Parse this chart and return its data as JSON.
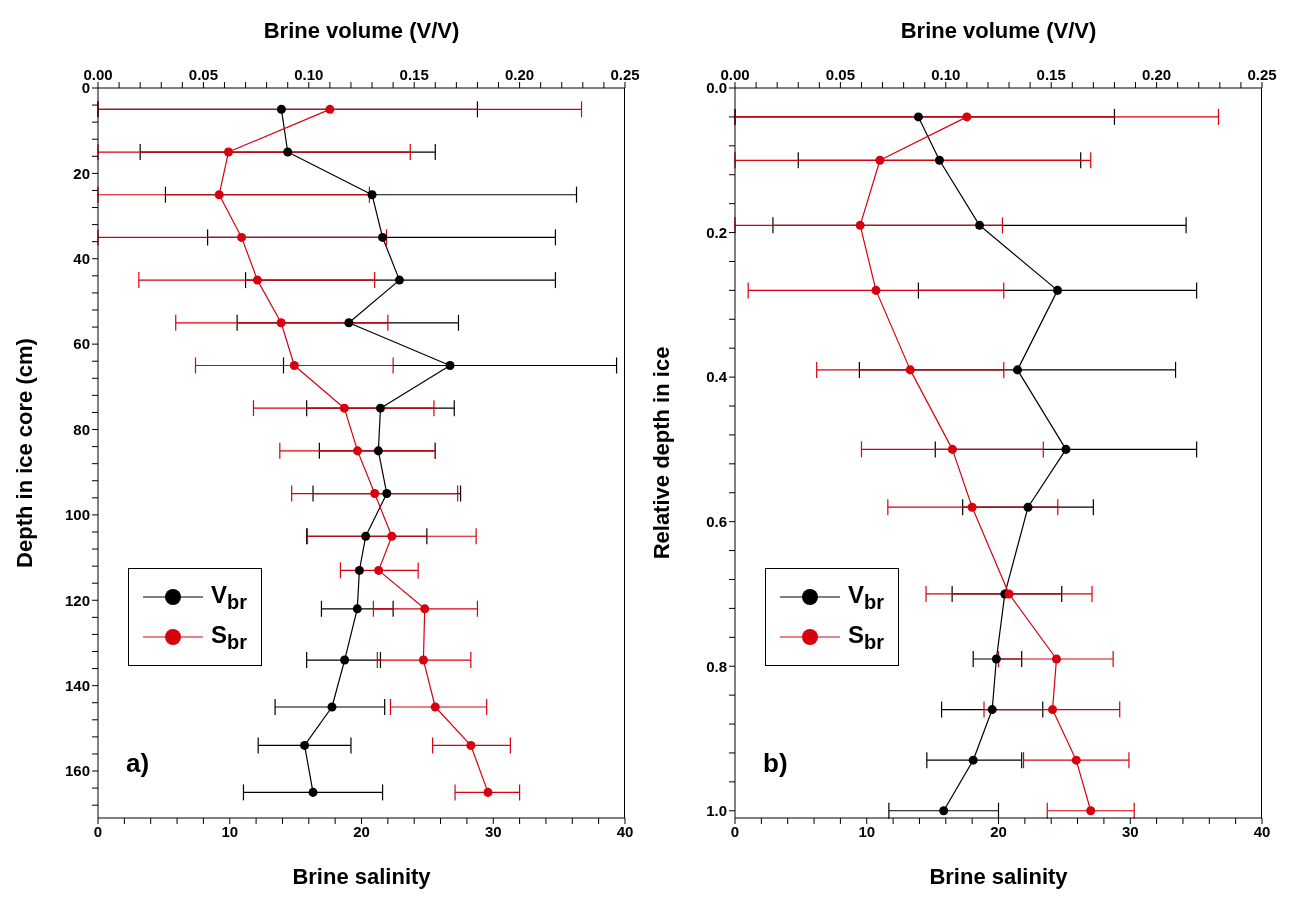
{
  "chart_data": [
    {
      "type": "line",
      "x2label": "Brine volume (V/V)",
      "xlabel": "Brine salinity",
      "ylabel": "Depth in ice core (cm)",
      "annotations": [
        "a)"
      ],
      "legend": "bottom left",
      "marker": "circle",
      "line_style": "solid",
      "xlim": [
        0,
        40
      ],
      "xticks": [
        0,
        {
          "value": 2,
          "label": null
        },
        {
          "value": 4,
          "label": null
        },
        {
          "value": 6,
          "label": null
        },
        {
          "value": 8,
          "label": null
        },
        10,
        {
          "value": 12,
          "label": null
        },
        {
          "value": 14,
          "label": null
        },
        {
          "value": 16,
          "label": null
        },
        {
          "value": 18,
          "label": null
        },
        20,
        {
          "value": 22,
          "label": null
        },
        {
          "value": 24,
          "label": null
        },
        {
          "value": 26,
          "label": null
        },
        {
          "value": 28,
          "label": null
        },
        30,
        {
          "value": 32,
          "label": null
        },
        {
          "value": 34,
          "label": null
        },
        {
          "value": 36,
          "label": null
        },
        {
          "value": 38,
          "label": null
        },
        40
      ],
      "x2lim": [
        0,
        0.25
      ],
      "x2ticks": [
        {
          "value": 0,
          "label": "0.00"
        },
        {
          "value": 0.01,
          "label": null
        },
        {
          "value": 0.02,
          "label": null
        },
        {
          "value": 0.03,
          "label": null
        },
        {
          "value": 0.04,
          "label": null
        },
        {
          "value": 0.05,
          "label": "0.05"
        },
        {
          "value": 0.06,
          "label": null
        },
        {
          "value": 0.07,
          "label": null
        },
        {
          "value": 0.08,
          "label": null
        },
        {
          "value": 0.09,
          "label": null
        },
        {
          "value": 0.1,
          "label": "0.10"
        },
        {
          "value": 0.11,
          "label": null
        },
        {
          "value": 0.12,
          "label": null
        },
        {
          "value": 0.13,
          "label": null
        },
        {
          "value": 0.14,
          "label": null
        },
        {
          "value": 0.15,
          "label": "0.15"
        },
        {
          "value": 0.16,
          "label": null
        },
        {
          "value": 0.17,
          "label": null
        },
        {
          "value": 0.18,
          "label": null
        },
        {
          "value": 0.19,
          "label": null
        },
        {
          "value": 0.2,
          "label": "0.20"
        },
        {
          "value": 0.21,
          "label": null
        },
        {
          "value": 0.22,
          "label": null
        },
        {
          "value": 0.23,
          "label": null
        },
        {
          "value": 0.24,
          "label": null
        },
        {
          "value": 0.25,
          "label": "0.25"
        }
      ],
      "ylim": [
        171,
        0
      ],
      "yticks": [
        0,
        {
          "value": 4,
          "label": null
        },
        {
          "value": 8,
          "label": null
        },
        {
          "value": 12,
          "label": null
        },
        {
          "value": 16,
          "label": null
        },
        20,
        {
          "value": 24,
          "label": null
        },
        {
          "value": 28,
          "label": null
        },
        {
          "value": 32,
          "label": null
        },
        {
          "value": 36,
          "label": null
        },
        40,
        {
          "value": 44,
          "label": null
        },
        {
          "value": 48,
          "label": null
        },
        {
          "value": 52,
          "label": null
        },
        {
          "value": 56,
          "label": null
        },
        60,
        {
          "value": 64,
          "label": null
        },
        {
          "value": 68,
          "label": null
        },
        {
          "value": 72,
          "label": null
        },
        {
          "value": 76,
          "label": null
        },
        80,
        {
          "value": 84,
          "label": null
        },
        {
          "value": 88,
          "label": null
        },
        {
          "value": 92,
          "label": null
        },
        {
          "value": 96,
          "label": null
        },
        100,
        {
          "value": 104,
          "label": null
        },
        {
          "value": 108,
          "label": null
        },
        {
          "value": 112,
          "label": null
        },
        {
          "value": 116,
          "label": null
        },
        120,
        {
          "value": 124,
          "label": null
        },
        {
          "value": 128,
          "label": null
        },
        {
          "value": 132,
          "label": null
        },
        {
          "value": 136,
          "label": null
        },
        140,
        {
          "value": 144,
          "label": null
        },
        {
          "value": 148,
          "label": null
        },
        {
          "value": 152,
          "label": null
        },
        {
          "value": 156,
          "label": null
        },
        160,
        {
          "value": 164,
          "label": null
        },
        {
          "value": 168,
          "label": null
        }
      ],
      "series": [
        {
          "name": "V$_{br}$",
          "color": "#000000",
          "axis": "x2",
          "x": [
            0.087,
            0.09,
            0.13,
            0.135,
            0.143,
            0.119,
            0.167,
            0.134,
            0.133,
            0.137,
            0.127,
            0.124,
            0.123,
            0.117,
            0.111,
            0.098,
            0.102
          ],
          "values": [
            5,
            15,
            25,
            35,
            45,
            55,
            65,
            75,
            85,
            95,
            105,
            113,
            122,
            134,
            145,
            154,
            165
          ],
          "xerrors": [
            [
              0,
              0.18
            ],
            [
              0.02,
              0.16
            ],
            [
              0.032,
              0.227
            ],
            [
              0.052,
              0.217
            ],
            [
              0.07,
              0.217
            ],
            [
              0.066,
              0.171
            ],
            [
              0.088,
              0.246
            ],
            [
              0.099,
              0.169
            ],
            [
              0.105,
              0.16
            ],
            [
              0.102,
              0.172
            ],
            [
              0.099,
              0.156
            ],
            null,
            [
              0.106,
              0.14
            ],
            [
              0.099,
              0.134
            ],
            [
              0.084,
              0.136
            ],
            [
              0.076,
              0.12
            ],
            [
              0.069,
              0.135
            ]
          ]
        },
        {
          "name": "S$_{br}$",
          "color": "#d7000f",
          "x": [
            17.6,
            9.9,
            9.2,
            10.9,
            12.1,
            13.9,
            14.9,
            18.7,
            19.7,
            21.0,
            22.3,
            21.3,
            24.8,
            24.7,
            25.6,
            28.3,
            29.6
          ],
          "values": [
            5,
            15,
            25,
            35,
            45,
            55,
            65,
            75,
            85,
            95,
            105,
            113,
            122,
            134,
            145,
            154,
            165
          ],
          "xerrors": [
            [
              0,
              36.7
            ],
            [
              0,
              23.7
            ],
            [
              0,
              20.6
            ],
            [
              0,
              21.9
            ],
            [
              3.1,
              21.0
            ],
            [
              5.9,
              22.0
            ],
            [
              7.4,
              22.4
            ],
            [
              11.8,
              25.5
            ],
            [
              13.8,
              25.6
            ],
            [
              14.7,
              27.3
            ],
            [
              15.9,
              28.7
            ],
            [
              18.4,
              24.3
            ],
            [
              20.9,
              28.8
            ],
            [
              21.2,
              28.3
            ],
            [
              22.2,
              29.5
            ],
            [
              25.4,
              31.3
            ],
            [
              27.1,
              32.0
            ]
          ]
        }
      ]
    },
    {
      "type": "line",
      "x2label": "Brine volume (V/V)",
      "xlabel": "Brine salinity",
      "ylabel": "Relative depth in ice",
      "annotations": [
        "b)"
      ],
      "legend": "bottom left",
      "marker": "circle",
      "line_style": "solid",
      "xlim": [
        0,
        40
      ],
      "xticks": [
        0,
        {
          "value": 2,
          "label": null
        },
        {
          "value": 4,
          "label": null
        },
        {
          "value": 6,
          "label": null
        },
        {
          "value": 8,
          "label": null
        },
        10,
        {
          "value": 12,
          "label": null
        },
        {
          "value": 14,
          "label": null
        },
        {
          "value": 16,
          "label": null
        },
        {
          "value": 18,
          "label": null
        },
        20,
        {
          "value": 22,
          "label": null
        },
        {
          "value": 24,
          "label": null
        },
        {
          "value": 26,
          "label": null
        },
        {
          "value": 28,
          "label": null
        },
        30,
        {
          "value": 32,
          "label": null
        },
        {
          "value": 34,
          "label": null
        },
        {
          "value": 36,
          "label": null
        },
        {
          "value": 38,
          "label": null
        },
        40
      ],
      "x2lim": [
        0,
        0.25
      ],
      "x2ticks": [
        {
          "value": 0,
          "label": "0.00"
        },
        {
          "value": 0.01,
          "label": null
        },
        {
          "value": 0.02,
          "label": null
        },
        {
          "value": 0.03,
          "label": null
        },
        {
          "value": 0.04,
          "label": null
        },
        {
          "value": 0.05,
          "label": "0.05"
        },
        {
          "value": 0.06,
          "label": null
        },
        {
          "value": 0.07,
          "label": null
        },
        {
          "value": 0.08,
          "label": null
        },
        {
          "value": 0.09,
          "label": null
        },
        {
          "value": 0.1,
          "label": "0.10"
        },
        {
          "value": 0.11,
          "label": null
        },
        {
          "value": 0.12,
          "label": null
        },
        {
          "value": 0.13,
          "label": null
        },
        {
          "value": 0.14,
          "label": null
        },
        {
          "value": 0.15,
          "label": "0.15"
        },
        {
          "value": 0.16,
          "label": null
        },
        {
          "value": 0.17,
          "label": null
        },
        {
          "value": 0.18,
          "label": null
        },
        {
          "value": 0.19,
          "label": null
        },
        {
          "value": 0.2,
          "label": "0.20"
        },
        {
          "value": 0.21,
          "label": null
        },
        {
          "value": 0.22,
          "label": null
        },
        {
          "value": 0.23,
          "label": null
        },
        {
          "value": 0.24,
          "label": null
        },
        {
          "value": 0.25,
          "label": "0.25"
        }
      ],
      "ylim": [
        1.01,
        0
      ],
      "yticks": [
        {
          "value": 0,
          "label": "0.0"
        },
        {
          "value": 0.04,
          "label": null
        },
        {
          "value": 0.08,
          "label": null
        },
        {
          "value": 0.12,
          "label": null
        },
        {
          "value": 0.16,
          "label": null
        },
        {
          "value": 0.2,
          "label": "0.2"
        },
        {
          "value": 0.24,
          "label": null
        },
        {
          "value": 0.28,
          "label": null
        },
        {
          "value": 0.32,
          "label": null
        },
        {
          "value": 0.36,
          "label": null
        },
        {
          "value": 0.4,
          "label": "0.4"
        },
        {
          "value": 0.44,
          "label": null
        },
        {
          "value": 0.48,
          "label": null
        },
        {
          "value": 0.52,
          "label": null
        },
        {
          "value": 0.56,
          "label": null
        },
        {
          "value": 0.6,
          "label": "0.6"
        },
        {
          "value": 0.64,
          "label": null
        },
        {
          "value": 0.68,
          "label": null
        },
        {
          "value": 0.72,
          "label": null
        },
        {
          "value": 0.76,
          "label": null
        },
        {
          "value": 0.8,
          "label": "0.8"
        },
        {
          "value": 0.84,
          "label": null
        },
        {
          "value": 0.88,
          "label": null
        },
        {
          "value": 0.92,
          "label": null
        },
        {
          "value": 0.96,
          "label": null
        },
        {
          "value": 1.0,
          "label": "1.0"
        }
      ],
      "series": [
        {
          "name": "V$_{br}$",
          "color": "#000000",
          "axis": "x2",
          "x": [
            0.087,
            0.097,
            0.116,
            0.153,
            0.134,
            0.157,
            0.139,
            0.128,
            0.124,
            0.122,
            0.113,
            0.099
          ],
          "values": [
            0.04,
            0.1,
            0.19,
            0.28,
            0.39,
            0.5,
            0.58,
            0.7,
            0.79,
            0.86,
            0.93,
            1.0
          ],
          "xerrors": [
            [
              0,
              0.18
            ],
            [
              0.03,
              0.164
            ],
            [
              0.018,
              0.214
            ],
            [
              0.087,
              0.219
            ],
            [
              0.059,
              0.209
            ],
            [
              0.095,
              0.219
            ],
            [
              0.108,
              0.17
            ],
            [
              0.103,
              0.155
            ],
            [
              0.113,
              0.136
            ],
            [
              0.098,
              0.146
            ],
            [
              0.091,
              0.136
            ],
            [
              0.073,
              0.125
            ]
          ]
        },
        {
          "name": "S$_{br}$",
          "color": "#d7000f",
          "x": [
            17.6,
            11.0,
            9.5,
            10.7,
            13.3,
            16.5,
            18.0,
            20.8,
            24.4,
            24.1,
            25.9,
            27.0
          ],
          "values": [
            0.04,
            0.1,
            0.19,
            0.28,
            0.39,
            0.5,
            0.58,
            0.7,
            0.79,
            0.86,
            0.93,
            1.0
          ],
          "xerrors": [
            [
              0,
              36.7
            ],
            [
              0,
              27.0
            ],
            [
              0,
              20.3
            ],
            [
              1.0,
              20.4
            ],
            [
              6.2,
              20.4
            ],
            [
              9.6,
              23.4
            ],
            [
              11.6,
              24.5
            ],
            [
              14.5,
              27.1
            ],
            [
              20.0,
              28.7
            ],
            [
              18.9,
              29.2
            ],
            [
              21.9,
              29.9
            ],
            [
              23.7,
              30.3
            ]
          ]
        }
      ]
    }
  ]
}
